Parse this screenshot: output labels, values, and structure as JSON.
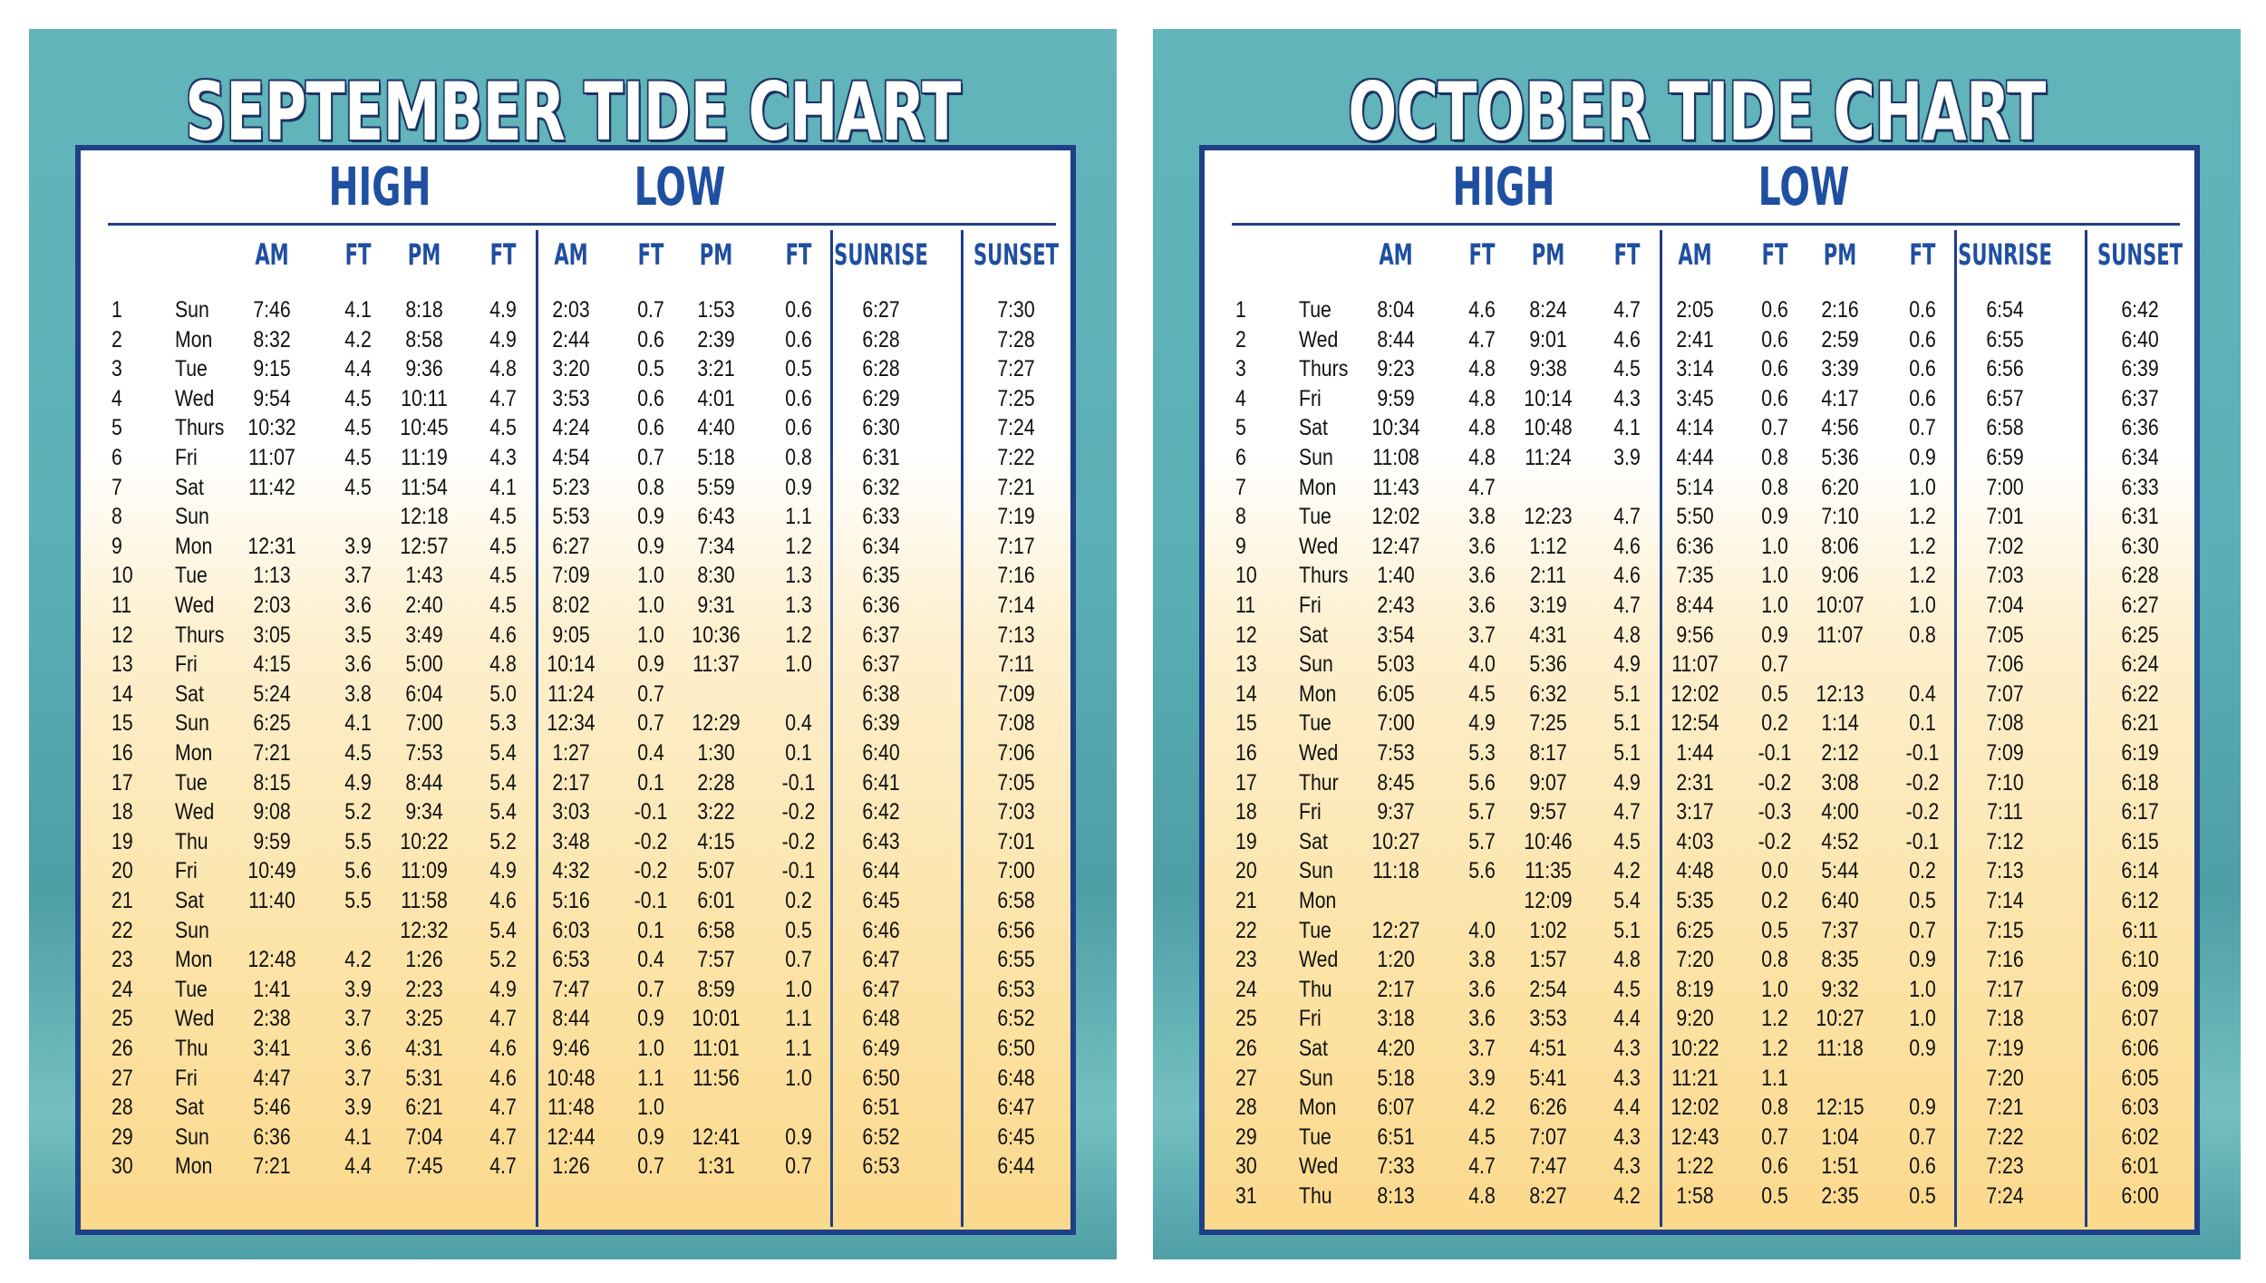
{
  "panels": [
    {
      "title": "SEPTEMBER TIDE CHART",
      "groups": [
        "HIGH",
        "LOW"
      ],
      "columns": [
        "AM",
        "FT",
        "PM",
        "FT",
        "AM",
        "FT",
        "PM",
        "FT",
        "SUNRISE",
        "SUNSET"
      ],
      "rows": [
        [
          "1",
          "Sun",
          "7:46",
          "4.1",
          "8:18",
          "4.9",
          "2:03",
          "0.7",
          "1:53",
          "0.6",
          "6:27",
          "7:30"
        ],
        [
          "2",
          "Mon",
          "8:32",
          "4.2",
          "8:58",
          "4.9",
          "2:44",
          "0.6",
          "2:39",
          "0.6",
          "6:28",
          "7:28"
        ],
        [
          "3",
          "Tue",
          "9:15",
          "4.4",
          "9:36",
          "4.8",
          "3:20",
          "0.5",
          "3:21",
          "0.5",
          "6:28",
          "7:27"
        ],
        [
          "4",
          "Wed",
          "9:54",
          "4.5",
          "10:11",
          "4.7",
          "3:53",
          "0.6",
          "4:01",
          "0.6",
          "6:29",
          "7:25"
        ],
        [
          "5",
          "Thurs",
          "10:32",
          "4.5",
          "10:45",
          "4.5",
          "4:24",
          "0.6",
          "4:40",
          "0.6",
          "6:30",
          "7:24"
        ],
        [
          "6",
          "Fri",
          "11:07",
          "4.5",
          "11:19",
          "4.3",
          "4:54",
          "0.7",
          "5:18",
          "0.8",
          "6:31",
          "7:22"
        ],
        [
          "7",
          "Sat",
          "11:42",
          "4.5",
          "11:54",
          "4.1",
          "5:23",
          "0.8",
          "5:59",
          "0.9",
          "6:32",
          "7:21"
        ],
        [
          "8",
          "Sun",
          null,
          null,
          "12:18",
          "4.5",
          "5:53",
          "0.9",
          "6:43",
          "1.1",
          "6:33",
          "7:19"
        ],
        [
          "9",
          "Mon",
          "12:31",
          "3.9",
          "12:57",
          "4.5",
          "6:27",
          "0.9",
          "7:34",
          "1.2",
          "6:34",
          "7:17"
        ],
        [
          "10",
          "Tue",
          "1:13",
          "3.7",
          "1:43",
          "4.5",
          "7:09",
          "1.0",
          "8:30",
          "1.3",
          "6:35",
          "7:16"
        ],
        [
          "11",
          "Wed",
          "2:03",
          "3.6",
          "2:40",
          "4.5",
          "8:02",
          "1.0",
          "9:31",
          "1.3",
          "6:36",
          "7:14"
        ],
        [
          "12",
          "Thurs",
          "3:05",
          "3.5",
          "3:49",
          "4.6",
          "9:05",
          "1.0",
          "10:36",
          "1.2",
          "6:37",
          "7:13"
        ],
        [
          "13",
          "Fri",
          "4:15",
          "3.6",
          "5:00",
          "4.8",
          "10:14",
          "0.9",
          "11:37",
          "1.0",
          "6:37",
          "7:11"
        ],
        [
          "14",
          "Sat",
          "5:24",
          "3.8",
          "6:04",
          "5.0",
          "11:24",
          "0.7",
          null,
          null,
          "6:38",
          "7:09"
        ],
        [
          "15",
          "Sun",
          "6:25",
          "4.1",
          "7:00",
          "5.3",
          "12:34",
          "0.7",
          "12:29",
          "0.4",
          "6:39",
          "7:08"
        ],
        [
          "16",
          "Mon",
          "7:21",
          "4.5",
          "7:53",
          "5.4",
          "1:27",
          "0.4",
          "1:30",
          "0.1",
          "6:40",
          "7:06"
        ],
        [
          "17",
          "Tue",
          "8:15",
          "4.9",
          "8:44",
          "5.4",
          "2:17",
          "0.1",
          "2:28",
          "-0.1",
          "6:41",
          "7:05"
        ],
        [
          "18",
          "Wed",
          "9:08",
          "5.2",
          "9:34",
          "5.4",
          "3:03",
          "-0.1",
          "3:22",
          "-0.2",
          "6:42",
          "7:03"
        ],
        [
          "19",
          "Thu",
          "9:59",
          "5.5",
          "10:22",
          "5.2",
          "3:48",
          "-0.2",
          "4:15",
          "-0.2",
          "6:43",
          "7:01"
        ],
        [
          "20",
          "Fri",
          "10:49",
          "5.6",
          "11:09",
          "4.9",
          "4:32",
          "-0.2",
          "5:07",
          "-0.1",
          "6:44",
          "7:00"
        ],
        [
          "21",
          "Sat",
          "11:40",
          "5.5",
          "11:58",
          "4.6",
          "5:16",
          "-0.1",
          "6:01",
          "0.2",
          "6:45",
          "6:58"
        ],
        [
          "22",
          "Sun",
          null,
          null,
          "12:32",
          "5.4",
          "6:03",
          "0.1",
          "6:58",
          "0.5",
          "6:46",
          "6:56"
        ],
        [
          "23",
          "Mon",
          "12:48",
          "4.2",
          "1:26",
          "5.2",
          "6:53",
          "0.4",
          "7:57",
          "0.7",
          "6:47",
          "6:55"
        ],
        [
          "24",
          "Tue",
          "1:41",
          "3.9",
          "2:23",
          "4.9",
          "7:47",
          "0.7",
          "8:59",
          "1.0",
          "6:47",
          "6:53"
        ],
        [
          "25",
          "Wed",
          "2:38",
          "3.7",
          "3:25",
          "4.7",
          "8:44",
          "0.9",
          "10:01",
          "1.1",
          "6:48",
          "6:52"
        ],
        [
          "26",
          "Thu",
          "3:41",
          "3.6",
          "4:31",
          "4.6",
          "9:46",
          "1.0",
          "11:01",
          "1.1",
          "6:49",
          "6:50"
        ],
        [
          "27",
          "Fri",
          "4:47",
          "3.7",
          "5:31",
          "4.6",
          "10:48",
          "1.1",
          "11:56",
          "1.0",
          "6:50",
          "6:48"
        ],
        [
          "28",
          "Sat",
          "5:46",
          "3.9",
          "6:21",
          "4.7",
          "11:48",
          "1.0",
          null,
          null,
          "6:51",
          "6:47"
        ],
        [
          "29",
          "Sun",
          "6:36",
          "4.1",
          "7:04",
          "4.7",
          "12:44",
          "0.9",
          "12:41",
          "0.9",
          "6:52",
          "6:45"
        ],
        [
          "30",
          "Mon",
          "7:21",
          "4.4",
          "7:45",
          "4.7",
          "1:26",
          "0.7",
          "1:31",
          "0.7",
          "6:53",
          "6:44"
        ]
      ]
    },
    {
      "title": "OCTOBER TIDE CHART",
      "groups": [
        "HIGH",
        "LOW"
      ],
      "columns": [
        "AM",
        "FT",
        "PM",
        "FT",
        "AM",
        "FT",
        "PM",
        "FT",
        "SUNRISE",
        "SUNSET"
      ],
      "rows": [
        [
          "1",
          "Tue",
          "8:04",
          "4.6",
          "8:24",
          "4.7",
          "2:05",
          "0.6",
          "2:16",
          "0.6",
          "6:54",
          "6:42"
        ],
        [
          "2",
          "Wed",
          "8:44",
          "4.7",
          "9:01",
          "4.6",
          "2:41",
          "0.6",
          "2:59",
          "0.6",
          "6:55",
          "6:40"
        ],
        [
          "3",
          "Thurs",
          "9:23",
          "4.8",
          "9:38",
          "4.5",
          "3:14",
          "0.6",
          "3:39",
          "0.6",
          "6:56",
          "6:39"
        ],
        [
          "4",
          "Fri",
          "9:59",
          "4.8",
          "10:14",
          "4.3",
          "3:45",
          "0.6",
          "4:17",
          "0.6",
          "6:57",
          "6:37"
        ],
        [
          "5",
          "Sat",
          "10:34",
          "4.8",
          "10:48",
          "4.1",
          "4:14",
          "0.7",
          "4:56",
          "0.7",
          "6:58",
          "6:36"
        ],
        [
          "6",
          "Sun",
          "11:08",
          "4.8",
          "11:24",
          "3.9",
          "4:44",
          "0.8",
          "5:36",
          "0.9",
          "6:59",
          "6:34"
        ],
        [
          "7",
          "Mon",
          "11:43",
          "4.7",
          null,
          null,
          "5:14",
          "0.8",
          "6:20",
          "1.0",
          "7:00",
          "6:33"
        ],
        [
          "8",
          "Tue",
          "12:02",
          "3.8",
          "12:23",
          "4.7",
          "5:50",
          "0.9",
          "7:10",
          "1.2",
          "7:01",
          "6:31"
        ],
        [
          "9",
          "Wed",
          "12:47",
          "3.6",
          "1:12",
          "4.6",
          "6:36",
          "1.0",
          "8:06",
          "1.2",
          "7:02",
          "6:30"
        ],
        [
          "10",
          "Thurs",
          "1:40",
          "3.6",
          "2:11",
          "4.6",
          "7:35",
          "1.0",
          "9:06",
          "1.2",
          "7:03",
          "6:28"
        ],
        [
          "11",
          "Fri",
          "2:43",
          "3.6",
          "3:19",
          "4.7",
          "8:44",
          "1.0",
          "10:07",
          "1.0",
          "7:04",
          "6:27"
        ],
        [
          "12",
          "Sat",
          "3:54",
          "3.7",
          "4:31",
          "4.8",
          "9:56",
          "0.9",
          "11:07",
          "0.8",
          "7:05",
          "6:25"
        ],
        [
          "13",
          "Sun",
          "5:03",
          "4.0",
          "5:36",
          "4.9",
          "11:07",
          "0.7",
          null,
          null,
          "7:06",
          "6:24"
        ],
        [
          "14",
          "Mon",
          "6:05",
          "4.5",
          "6:32",
          "5.1",
          "12:02",
          "0.5",
          "12:13",
          "0.4",
          "7:07",
          "6:22"
        ],
        [
          "15",
          "Tue",
          "7:00",
          "4.9",
          "7:25",
          "5.1",
          "12:54",
          "0.2",
          "1:14",
          "0.1",
          "7:08",
          "6:21"
        ],
        [
          "16",
          "Wed",
          "7:53",
          "5.3",
          "8:17",
          "5.1",
          "1:44",
          "-0.1",
          "2:12",
          "-0.1",
          "7:09",
          "6:19"
        ],
        [
          "17",
          "Thur",
          "8:45",
          "5.6",
          "9:07",
          "4.9",
          "2:31",
          "-0.2",
          "3:08",
          "-0.2",
          "7:10",
          "6:18"
        ],
        [
          "18",
          "Fri",
          "9:37",
          "5.7",
          "9:57",
          "4.7",
          "3:17",
          "-0.3",
          "4:00",
          "-0.2",
          "7:11",
          "6:17"
        ],
        [
          "19",
          "Sat",
          "10:27",
          "5.7",
          "10:46",
          "4.5",
          "4:03",
          "-0.2",
          "4:52",
          "-0.1",
          "7:12",
          "6:15"
        ],
        [
          "20",
          "Sun",
          "11:18",
          "5.6",
          "11:35",
          "4.2",
          "4:48",
          "0.0",
          "5:44",
          "0.2",
          "7:13",
          "6:14"
        ],
        [
          "21",
          "Mon",
          null,
          null,
          "12:09",
          "5.4",
          "5:35",
          "0.2",
          "6:40",
          "0.5",
          "7:14",
          "6:12"
        ],
        [
          "22",
          "Tue",
          "12:27",
          "4.0",
          "1:02",
          "5.1",
          "6:25",
          "0.5",
          "7:37",
          "0.7",
          "7:15",
          "6:11"
        ],
        [
          "23",
          "Wed",
          "1:20",
          "3.8",
          "1:57",
          "4.8",
          "7:20",
          "0.8",
          "8:35",
          "0.9",
          "7:16",
          "6:10"
        ],
        [
          "24",
          "Thu",
          "2:17",
          "3.6",
          "2:54",
          "4.5",
          "8:19",
          "1.0",
          "9:32",
          "1.0",
          "7:17",
          "6:09"
        ],
        [
          "25",
          "Fri",
          "3:18",
          "3.6",
          "3:53",
          "4.4",
          "9:20",
          "1.2",
          "10:27",
          "1.0",
          "7:18",
          "6:07"
        ],
        [
          "26",
          "Sat",
          "4:20",
          "3.7",
          "4:51",
          "4.3",
          "10:22",
          "1.2",
          "11:18",
          "0.9",
          "7:19",
          "6:06"
        ],
        [
          "27",
          "Sun",
          "5:18",
          "3.9",
          "5:41",
          "4.3",
          "11:21",
          "1.1",
          null,
          null,
          "7:20",
          "6:05"
        ],
        [
          "28",
          "Mon",
          "6:07",
          "4.2",
          "6:26",
          "4.4",
          "12:02",
          "0.8",
          "12:15",
          "0.9",
          "7:21",
          "6:03"
        ],
        [
          "29",
          "Tue",
          "6:51",
          "4.5",
          "7:07",
          "4.3",
          "12:43",
          "0.7",
          "1:04",
          "0.7",
          "7:22",
          "6:02"
        ],
        [
          "30",
          "Wed",
          "7:33",
          "4.7",
          "7:47",
          "4.3",
          "1:22",
          "0.6",
          "1:51",
          "0.6",
          "7:23",
          "6:01"
        ],
        [
          "31",
          "Thu",
          "8:13",
          "4.8",
          "8:27",
          "4.2",
          "1:58",
          "0.5",
          "2:35",
          "0.5",
          "7:24",
          "6:00"
        ]
      ]
    }
  ]
}
